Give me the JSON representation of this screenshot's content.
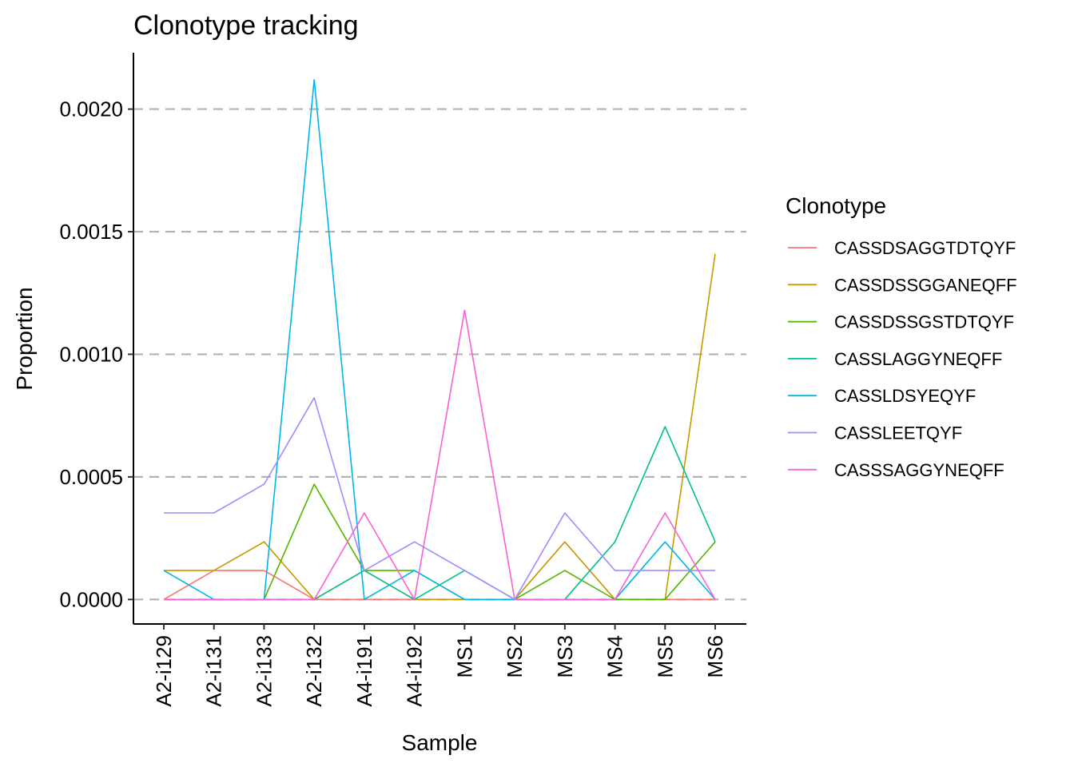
{
  "chart_data": {
    "type": "line",
    "title": "Clonotype tracking",
    "xlabel": "Sample",
    "ylabel": "Proportion",
    "categories": [
      "A2-i129",
      "A2-i131",
      "A2-i133",
      "A2-i132",
      "A4-i191",
      "A4-i192",
      "MS1",
      "MS2",
      "MS3",
      "MS4",
      "MS5",
      "MS6"
    ],
    "ylim": [
      -0.0001,
      0.00223
    ],
    "yticks": [
      0,
      0.0005,
      0.001,
      0.0015,
      0.002
    ],
    "ytick_labels": [
      "0.0000",
      "0.0005",
      "0.0010",
      "0.0015",
      "0.0020"
    ],
    "grid": "horizontal major, dashed",
    "legend": {
      "title": "Clonotype",
      "position": "right"
    },
    "series": [
      {
        "name": "CASSDSAGGTDTQYF",
        "color": "#F8766D",
        "values": [
          0,
          0.000118,
          0.000118,
          0,
          0,
          0,
          0,
          0,
          0,
          0,
          0,
          0
        ]
      },
      {
        "name": "CASSDSSGGANEQFF",
        "color": "#C49A00",
        "values": [
          0.000118,
          0.000118,
          0.000235,
          0,
          0.000118,
          0,
          0,
          0,
          0.000235,
          0,
          0,
          0.00141
        ]
      },
      {
        "name": "CASSDSSGSTDTQYF",
        "color": "#53B400",
        "values": [
          0,
          0,
          0,
          0.00047,
          0.000118,
          0.000118,
          0,
          0,
          0.000118,
          0,
          0,
          0.000235
        ]
      },
      {
        "name": "CASSLAGGYNEQFF",
        "color": "#00C094",
        "values": [
          0,
          0,
          0,
          0,
          0.000118,
          0,
          0.000118,
          0,
          0,
          0.000235,
          0.000705,
          0.000235
        ]
      },
      {
        "name": "CASSLDSYEQYF",
        "color": "#00B6EB",
        "values": [
          0.000118,
          0,
          0,
          0.00212,
          0,
          0.000118,
          0,
          0,
          0,
          0,
          0.000235,
          0
        ]
      },
      {
        "name": "CASSLEETQYF",
        "color": "#A58AFF",
        "values": [
          0.000353,
          0.000353,
          0.00047,
          0.000823,
          0.000118,
          0.000235,
          0.000118,
          0,
          0.000353,
          0.000118,
          0.000118,
          0.000118
        ]
      },
      {
        "name": "CASSSAGGYNEQFF",
        "color": "#FB61D7",
        "values": [
          0,
          0,
          0,
          0,
          0.000353,
          0,
          0.00118,
          0,
          0,
          0,
          0.000353,
          0
        ]
      }
    ]
  }
}
